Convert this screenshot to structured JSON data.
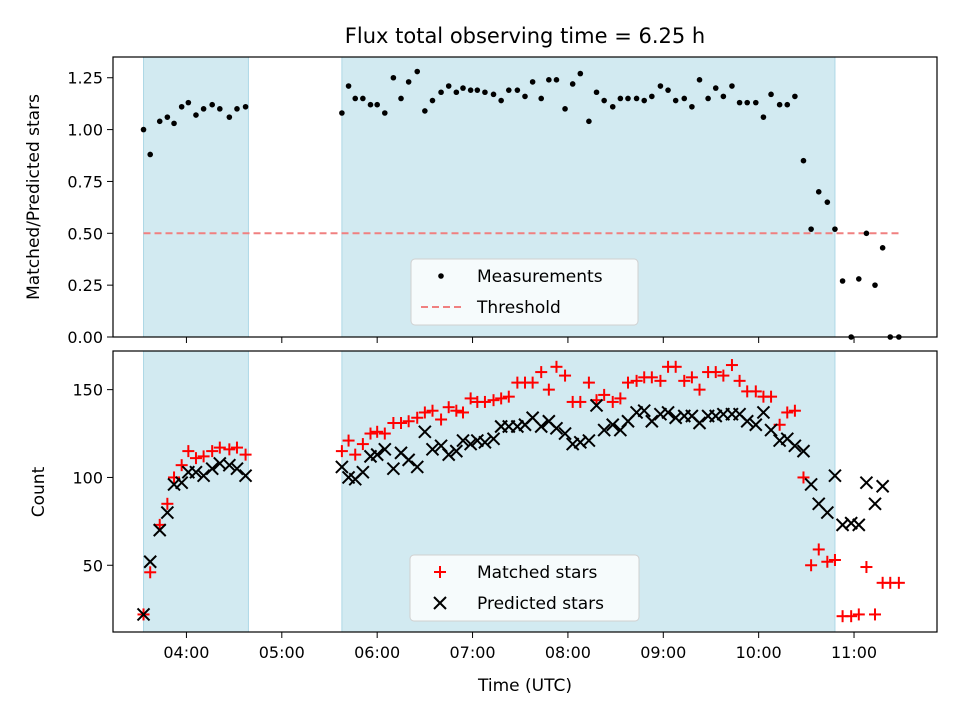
{
  "chart_data": {
    "title": "Flux total observing time = 6.25 h",
    "x_unit": "hours (UTC)",
    "xlim": [
      3.23,
      11.87
    ],
    "x_ticks": [
      {
        "value": 4,
        "label": "04:00"
      },
      {
        "value": 5,
        "label": "05:00"
      },
      {
        "value": 6,
        "label": "06:00"
      },
      {
        "value": 7,
        "label": "07:00"
      },
      {
        "value": 8,
        "label": "08:00"
      },
      {
        "value": 9,
        "label": "09:00"
      },
      {
        "value": 10,
        "label": "10:00"
      },
      {
        "value": 11,
        "label": "11:00"
      }
    ],
    "xlabel": "Time (UTC)",
    "shaded_intervals": [
      [
        3.55,
        4.65
      ],
      [
        5.63,
        10.8
      ]
    ],
    "shade_color": "#add8e6",
    "top": {
      "type": "scatter",
      "ylabel": "Matched/Predicted stars",
      "ylim": [
        0,
        1.35
      ],
      "y_ticks": [
        0,
        0.25,
        0.5,
        0.75,
        1.0,
        1.25
      ],
      "y_tick_labels": [
        "0.00",
        "0.25",
        "0.50",
        "0.75",
        "1.00",
        "1.25"
      ],
      "threshold": {
        "name": "Threshold",
        "value": 0.5,
        "x_range": [
          3.55,
          11.47
        ],
        "color": "#f08080"
      },
      "measurements": {
        "name": "Measurements",
        "color": "#000000",
        "points": [
          [
            3.55,
            1.0
          ],
          [
            3.62,
            0.88
          ],
          [
            3.72,
            1.04
          ],
          [
            3.8,
            1.06
          ],
          [
            3.87,
            1.03
          ],
          [
            3.95,
            1.11
          ],
          [
            4.02,
            1.13
          ],
          [
            4.1,
            1.07
          ],
          [
            4.18,
            1.1
          ],
          [
            4.27,
            1.12
          ],
          [
            4.35,
            1.1
          ],
          [
            4.45,
            1.06
          ],
          [
            4.53,
            1.1
          ],
          [
            4.62,
            1.11
          ],
          [
            5.63,
            1.08
          ],
          [
            5.7,
            1.21
          ],
          [
            5.77,
            1.15
          ],
          [
            5.85,
            1.15
          ],
          [
            5.93,
            1.12
          ],
          [
            6.0,
            1.12
          ],
          [
            6.08,
            1.08
          ],
          [
            6.17,
            1.25
          ],
          [
            6.25,
            1.15
          ],
          [
            6.33,
            1.23
          ],
          [
            6.42,
            1.28
          ],
          [
            6.5,
            1.09
          ],
          [
            6.58,
            1.14
          ],
          [
            6.67,
            1.18
          ],
          [
            6.75,
            1.21
          ],
          [
            6.83,
            1.18
          ],
          [
            6.9,
            1.2
          ],
          [
            6.98,
            1.19
          ],
          [
            7.05,
            1.19
          ],
          [
            7.13,
            1.18
          ],
          [
            7.22,
            1.17
          ],
          [
            7.3,
            1.14
          ],
          [
            7.38,
            1.19
          ],
          [
            7.47,
            1.19
          ],
          [
            7.55,
            1.16
          ],
          [
            7.63,
            1.23
          ],
          [
            7.72,
            1.15
          ],
          [
            7.8,
            1.24
          ],
          [
            7.88,
            1.24
          ],
          [
            7.97,
            1.1
          ],
          [
            8.05,
            1.22
          ],
          [
            8.13,
            1.27
          ],
          [
            8.22,
            1.04
          ],
          [
            8.3,
            1.18
          ],
          [
            8.38,
            1.14
          ],
          [
            8.47,
            1.11
          ],
          [
            8.55,
            1.15
          ],
          [
            8.63,
            1.15
          ],
          [
            8.72,
            1.15
          ],
          [
            8.8,
            1.14
          ],
          [
            8.88,
            1.16
          ],
          [
            8.97,
            1.21
          ],
          [
            9.05,
            1.19
          ],
          [
            9.13,
            1.14
          ],
          [
            9.22,
            1.15
          ],
          [
            9.3,
            1.11
          ],
          [
            9.38,
            1.24
          ],
          [
            9.47,
            1.15
          ],
          [
            9.55,
            1.2
          ],
          [
            9.63,
            1.16
          ],
          [
            9.72,
            1.21
          ],
          [
            9.8,
            1.13
          ],
          [
            9.88,
            1.13
          ],
          [
            9.97,
            1.13
          ],
          [
            10.05,
            1.06
          ],
          [
            10.13,
            1.17
          ],
          [
            10.22,
            1.12
          ],
          [
            10.3,
            1.12
          ],
          [
            10.38,
            1.16
          ],
          [
            10.47,
            0.85
          ],
          [
            10.55,
            0.52
          ],
          [
            10.63,
            0.7
          ],
          [
            10.72,
            0.65
          ],
          [
            10.8,
            0.52
          ],
          [
            10.88,
            0.27
          ],
          [
            10.97,
            0.0
          ],
          [
            11.05,
            0.28
          ],
          [
            11.13,
            0.5
          ],
          [
            11.22,
            0.25
          ],
          [
            11.3,
            0.43
          ],
          [
            11.38,
            0.0
          ],
          [
            11.47,
            0.0
          ]
        ]
      },
      "legend": [
        "Measurements",
        "Threshold"
      ]
    },
    "bottom": {
      "type": "scatter",
      "ylabel": "Count",
      "ylim": [
        12,
        172
      ],
      "y_ticks": [
        50,
        100,
        150
      ],
      "series": [
        {
          "name": "Matched stars",
          "marker": "plus",
          "color": "#ff0000",
          "points": [
            [
              3.55,
              22
            ],
            [
              3.62,
              46
            ],
            [
              3.72,
              73
            ],
            [
              3.8,
              85
            ],
            [
              3.87,
              100
            ],
            [
              3.95,
              107
            ],
            [
              4.02,
              115
            ],
            [
              4.1,
              111
            ],
            [
              4.18,
              112
            ],
            [
              4.27,
              115
            ],
            [
              4.35,
              117
            ],
            [
              4.45,
              116
            ],
            [
              4.53,
              117
            ],
            [
              4.62,
              113
            ],
            [
              5.63,
              115
            ],
            [
              5.7,
              121
            ],
            [
              5.77,
              113
            ],
            [
              5.85,
              119
            ],
            [
              5.93,
              125
            ],
            [
              6.0,
              126
            ],
            [
              6.08,
              125
            ],
            [
              6.17,
              131
            ],
            [
              6.25,
              131
            ],
            [
              6.33,
              132
            ],
            [
              6.42,
              134
            ],
            [
              6.5,
              137
            ],
            [
              6.58,
              138
            ],
            [
              6.67,
              133
            ],
            [
              6.75,
              140
            ],
            [
              6.83,
              138
            ],
            [
              6.9,
              137
            ],
            [
              6.98,
              145
            ],
            [
              7.05,
              143
            ],
            [
              7.13,
              143
            ],
            [
              7.22,
              144
            ],
            [
              7.3,
              145
            ],
            [
              7.38,
              146
            ],
            [
              7.47,
              154
            ],
            [
              7.55,
              154
            ],
            [
              7.63,
              154
            ],
            [
              7.72,
              160
            ],
            [
              7.8,
              150
            ],
            [
              7.88,
              163
            ],
            [
              7.97,
              158
            ],
            [
              8.05,
              143
            ],
            [
              8.13,
              143
            ],
            [
              8.22,
              154
            ],
            [
              8.3,
              144
            ],
            [
              8.38,
              147
            ],
            [
              8.47,
              143
            ],
            [
              8.55,
              145
            ],
            [
              8.63,
              154
            ],
            [
              8.72,
              155
            ],
            [
              8.8,
              157
            ],
            [
              8.88,
              157
            ],
            [
              8.97,
              155
            ],
            [
              9.05,
              163
            ],
            [
              9.13,
              163
            ],
            [
              9.22,
              155
            ],
            [
              9.3,
              157
            ],
            [
              9.38,
              150
            ],
            [
              9.47,
              160
            ],
            [
              9.55,
              160
            ],
            [
              9.63,
              158
            ],
            [
              9.72,
              164
            ],
            [
              9.8,
              155
            ],
            [
              9.88,
              149
            ],
            [
              9.97,
              149
            ],
            [
              10.05,
              146
            ],
            [
              10.13,
              146
            ],
            [
              10.22,
              130
            ],
            [
              10.3,
              137
            ],
            [
              10.38,
              138
            ],
            [
              10.47,
              100
            ],
            [
              10.55,
              50
            ],
            [
              10.63,
              59
            ],
            [
              10.72,
              52
            ],
            [
              10.8,
              53
            ],
            [
              10.88,
              21
            ],
            [
              10.97,
              21
            ],
            [
              11.05,
              22
            ],
            [
              11.13,
              49
            ],
            [
              11.22,
              22
            ],
            [
              11.3,
              40
            ],
            [
              11.38,
              40
            ],
            [
              11.47,
              40
            ]
          ]
        },
        {
          "name": "Predicted stars",
          "marker": "x",
          "color": "#000000",
          "points": [
            [
              3.55,
              22
            ],
            [
              3.62,
              52
            ],
            [
              3.72,
              70
            ],
            [
              3.8,
              80
            ],
            [
              3.87,
              96
            ],
            [
              3.95,
              97
            ],
            [
              4.02,
              103
            ],
            [
              4.1,
              103
            ],
            [
              4.18,
              101
            ],
            [
              4.27,
              105
            ],
            [
              4.35,
              108
            ],
            [
              4.45,
              107
            ],
            [
              4.53,
              105
            ],
            [
              4.62,
              101
            ],
            [
              5.63,
              106
            ],
            [
              5.7,
              100
            ],
            [
              5.77,
              99
            ],
            [
              5.85,
              103
            ],
            [
              5.93,
              112
            ],
            [
              6.0,
              113
            ],
            [
              6.08,
              116
            ],
            [
              6.17,
              105
            ],
            [
              6.25,
              114
            ],
            [
              6.33,
              110
            ],
            [
              6.42,
              106
            ],
            [
              6.5,
              126
            ],
            [
              6.58,
              116
            ],
            [
              6.67,
              118
            ],
            [
              6.75,
              113
            ],
            [
              6.83,
              115
            ],
            [
              6.9,
              121
            ],
            [
              6.98,
              119
            ],
            [
              7.05,
              121
            ],
            [
              7.13,
              120
            ],
            [
              7.22,
              122
            ],
            [
              7.3,
              129
            ],
            [
              7.38,
              129
            ],
            [
              7.47,
              129
            ],
            [
              7.55,
              130
            ],
            [
              7.63,
              134
            ],
            [
              7.72,
              129
            ],
            [
              7.8,
              132
            ],
            [
              7.88,
              128
            ],
            [
              7.97,
              125
            ],
            [
              8.05,
              119
            ],
            [
              8.13,
              120
            ],
            [
              8.22,
              121
            ],
            [
              8.3,
              141
            ],
            [
              8.38,
              127
            ],
            [
              8.47,
              130
            ],
            [
              8.55,
              127
            ],
            [
              8.63,
              132
            ],
            [
              8.72,
              137
            ],
            [
              8.8,
              138
            ],
            [
              8.88,
              132
            ],
            [
              8.97,
              136
            ],
            [
              9.05,
              137
            ],
            [
              9.13,
              134
            ],
            [
              9.22,
              135
            ],
            [
              9.3,
              135
            ],
            [
              9.38,
              131
            ],
            [
              9.47,
              135
            ],
            [
              9.55,
              135
            ],
            [
              9.63,
              136
            ],
            [
              9.72,
              136
            ],
            [
              9.8,
              136
            ],
            [
              9.88,
              132
            ],
            [
              9.97,
              130
            ],
            [
              10.05,
              137
            ],
            [
              10.13,
              127
            ],
            [
              10.22,
              121
            ],
            [
              10.3,
              122
            ],
            [
              10.38,
              118
            ],
            [
              10.47,
              115
            ],
            [
              10.55,
              96
            ],
            [
              10.63,
              85
            ],
            [
              10.72,
              80
            ],
            [
              10.8,
              101
            ],
            [
              10.88,
              73
            ],
            [
              10.97,
              74
            ],
            [
              11.05,
              73
            ],
            [
              11.13,
              97
            ],
            [
              11.22,
              85
            ],
            [
              11.3,
              95
            ]
          ]
        }
      ],
      "legend": [
        "Matched stars",
        "Predicted stars"
      ]
    }
  }
}
